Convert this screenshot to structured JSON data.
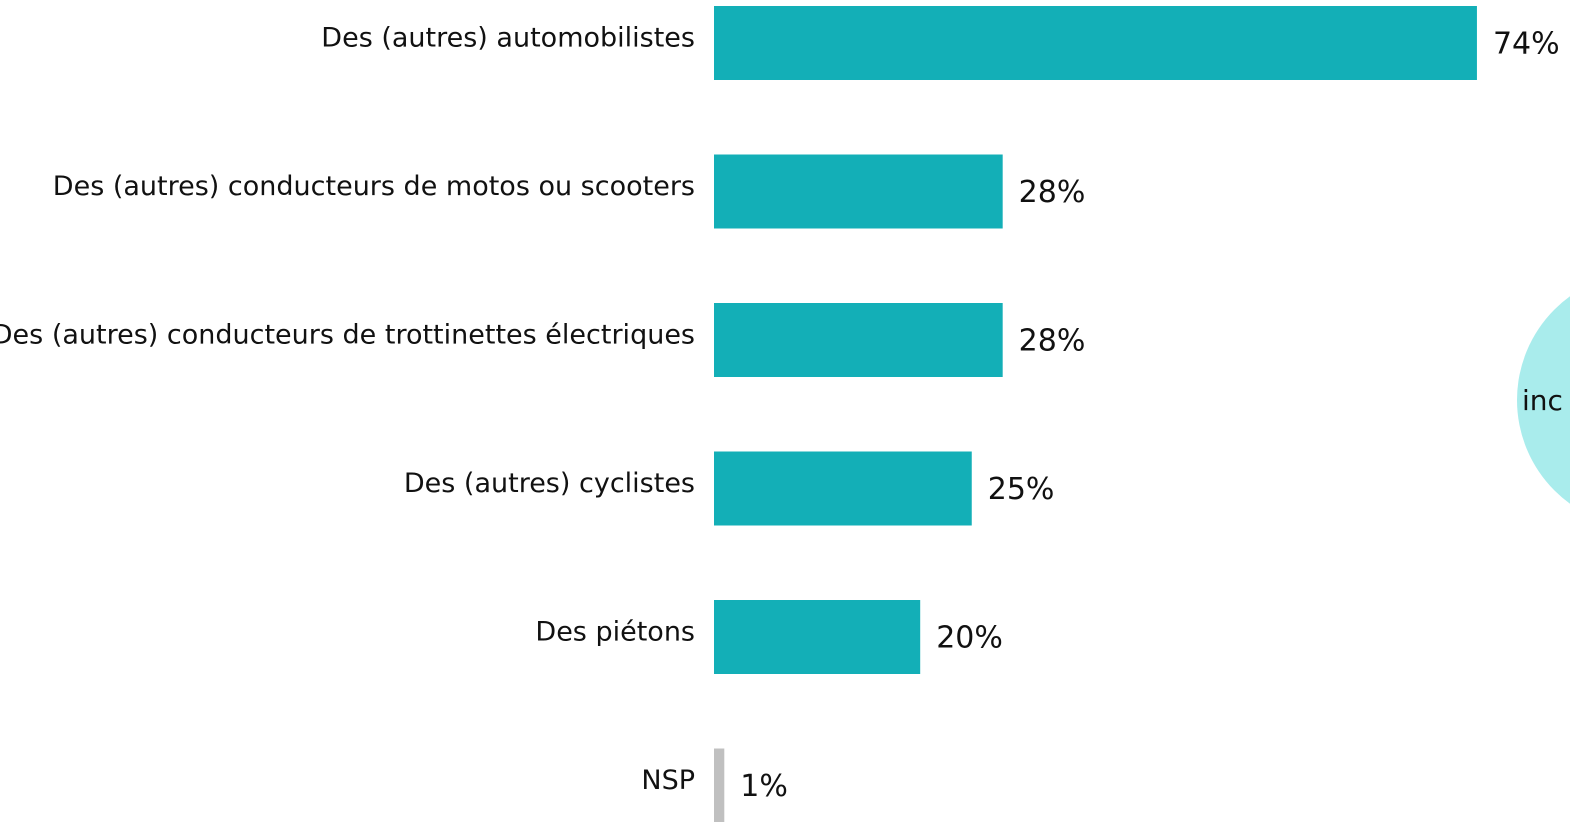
{
  "chart_data": {
    "type": "bar",
    "orientation": "horizontal",
    "categories": [
      "Des (autres) automobilistes",
      "Des (autres) conducteurs de motos ou scooters",
      "Des (autres) conducteurs de trottinettes électriques",
      "Des (autres) cyclistes",
      "Des piétons",
      "NSP"
    ],
    "values": [
      74,
      28,
      28,
      25,
      20,
      1
    ],
    "value_labels": [
      "74%",
      "28%",
      "28%",
      "25%",
      "20%",
      "1%"
    ],
    "colors": [
      "#13afb7",
      "#13afb7",
      "#13afb7",
      "#13afb7",
      "#13afb7",
      "#c0c0c0"
    ],
    "annotations": [
      "inc"
    ]
  }
}
